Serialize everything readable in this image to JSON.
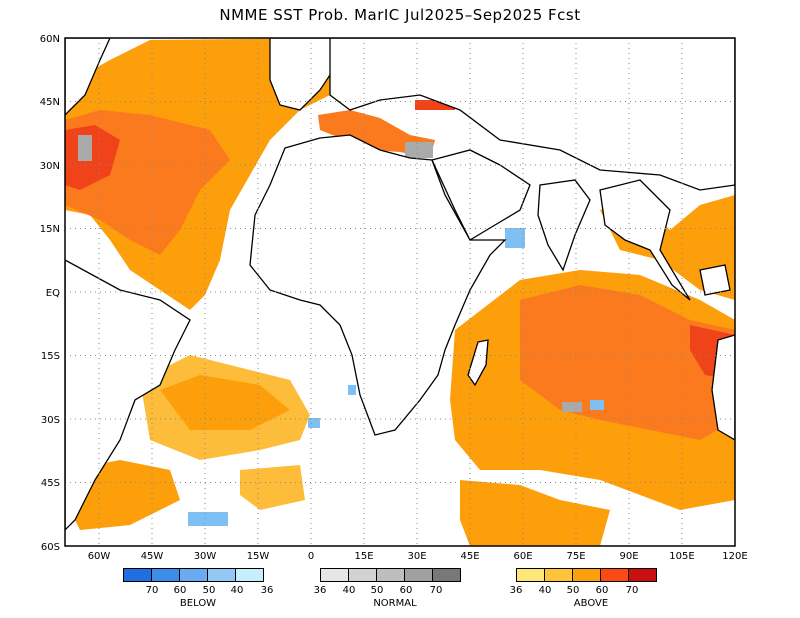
{
  "title": "NMME SST Prob. MarIC   Jul2025–Sep2025 Fcst",
  "map": {
    "lat_labels": [
      "60N",
      "45N",
      "30N",
      "15N",
      "EQ",
      "15S",
      "30S",
      "45S",
      "60S"
    ],
    "lon_labels": [
      "60W",
      "45W",
      "30W",
      "15W",
      "0",
      "15E",
      "30E",
      "45E",
      "60E",
      "75E",
      "90E",
      "105E",
      "120E"
    ],
    "lon_range": [
      -75,
      120
    ],
    "lat_range": [
      -60,
      60
    ],
    "grid": "dotted",
    "colors": {
      "above_40": "#fdbd3a",
      "above_50": "#fd9f0a",
      "above_60": "#fb7a1e",
      "above_70": "#f0431a",
      "below_40": "#7ec0f4",
      "normal_60": "#aaaaaa"
    }
  },
  "legend": {
    "below": {
      "caption": "BELOW",
      "labels": [
        "70",
        "60",
        "50",
        "40",
        "36"
      ],
      "colors": [
        "#1f6fe0",
        "#3d8cec",
        "#6aaaf0",
        "#96c8f6",
        "#c6eefc"
      ]
    },
    "normal": {
      "caption": "NORMAL",
      "labels": [
        "36",
        "40",
        "50",
        "60",
        "70"
      ],
      "colors": [
        "#e6e6e6",
        "#d2d2d2",
        "#bebebe",
        "#a0a0a0",
        "#787878"
      ]
    },
    "above": {
      "caption": "ABOVE",
      "labels": [
        "36",
        "40",
        "50",
        "60",
        "70"
      ],
      "colors": [
        "#fde67a",
        "#fdc33a",
        "#fd9f0a",
        "#fb4a14",
        "#c81010"
      ]
    }
  }
}
